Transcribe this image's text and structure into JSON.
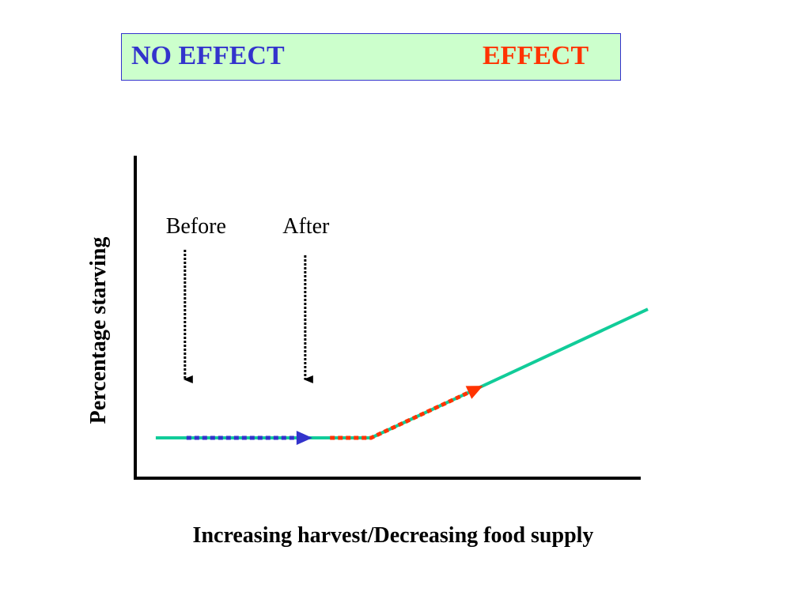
{
  "legend": {
    "no_effect_label": "NO EFFECT",
    "effect_label": "EFFECT"
  },
  "colors": {
    "no_effect": "#3333cc",
    "effect": "#ff3300",
    "curve": "#11cc99",
    "legend_bg": "#ccffcc",
    "axis": "#000000"
  },
  "chart_data": {
    "type": "line",
    "title": "",
    "xlabel": "Increasing harvest/Decreasing food supply",
    "ylabel": "Percentage starving",
    "grid": false,
    "series": [
      {
        "x": [
          0.04,
          0.46,
          1.0
        ],
        "y": [
          0.0,
          0.0,
          0.44
        ],
        "color": "#11cc99"
      }
    ],
    "segments": [
      {
        "label": "NO EFFECT",
        "x": [
          0.1,
          0.33
        ],
        "color": "#3333cc",
        "style": "dotted-arrow"
      },
      {
        "label": "EFFECT",
        "x": [
          0.38,
          0.67
        ],
        "color": "#ff3300",
        "style": "dotted-arrow"
      }
    ],
    "annotations": [
      {
        "text": "Before",
        "x": 0.1
      },
      {
        "text": "After",
        "x": 0.33
      }
    ]
  }
}
